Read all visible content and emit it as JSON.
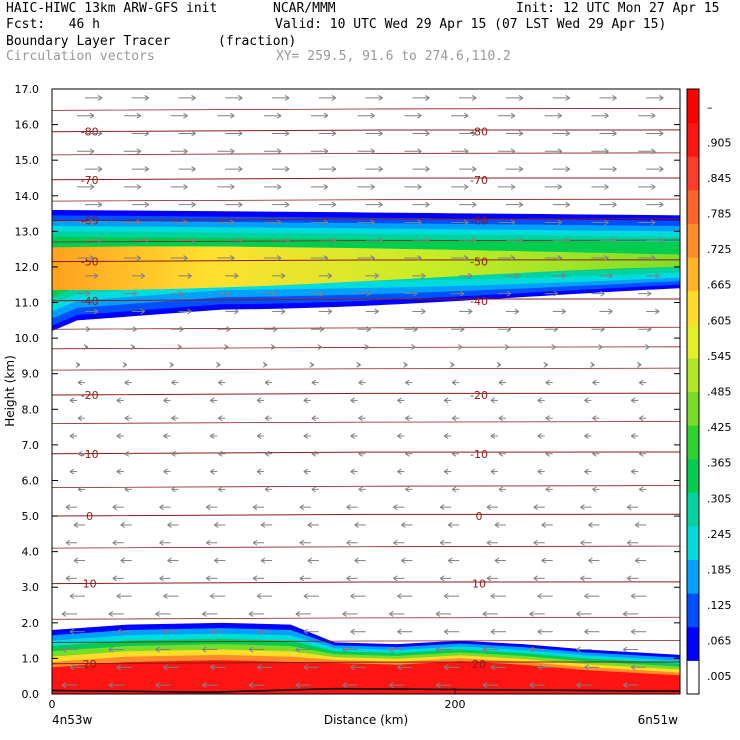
{
  "header": {
    "title": "HAIC-HIWC 13km ARW-GFS init",
    "org": "NCAR/MMM",
    "init": "Init: 12 UTC Mon 27 Apr 15",
    "fcst": "Fcst:   46 h",
    "valid": "Valid: 10 UTC Wed 29 Apr 15 (07 LST Wed 29 Apr 15)",
    "field": "Boundary Layer Tracer",
    "units": "(fraction)",
    "vectors": "Circulation vectors",
    "xy": "XY= 259.5, 91.6 to 274.6,110.2"
  },
  "colors": {
    "tracer_scale": [
      "#ffffff",
      "#0000ff",
      "#0050ff",
      "#00a0ff",
      "#00dcdc",
      "#00d2a0",
      "#00cc50",
      "#30d230",
      "#78dc28",
      "#b4e628",
      "#e6f028",
      "#ffdc28",
      "#ffb428",
      "#ff8c28",
      "#ff6428",
      "#ff3c28",
      "#ff1414",
      "#ff0000"
    ],
    "contour": "#8b1a1a",
    "vector": "#808080"
  },
  "chart_data": {
    "type": "cross-section",
    "xlabel": "Distance (km)",
    "ylabel": "Height (km)",
    "x_ticks": [
      {
        "value": 0,
        "label": "0"
      },
      {
        "value": 200,
        "label": "200"
      }
    ],
    "x_end_labels": [
      "4n53w",
      "6n51w"
    ],
    "ylim": [
      0,
      17
    ],
    "y_ticks": [
      "0.0",
      "1.0",
      "2.0",
      "3.0",
      "4.0",
      "5.0",
      "6.0",
      "7.0",
      "8.0",
      "9.0",
      "10.0",
      "11.0",
      "12.0",
      "13.0",
      "14.0",
      "15.0",
      "16.0",
      "17.0"
    ],
    "colorbar_labels": [
      ".005",
      ".065",
      ".125",
      ".185",
      ".245",
      ".305",
      ".365",
      ".425",
      ".485",
      ".545",
      ".605",
      ".665",
      ".725",
      ".785",
      ".845",
      ".905",
      "–"
    ],
    "temperature_contours": [
      {
        "label": "-80",
        "height": 15.8
      },
      {
        "label": "-70",
        "height": 14.45
      },
      {
        "label": "-60",
        "height": 13.3
      },
      {
        "label": "-50",
        "height": 12.15
      },
      {
        "label": "-40",
        "height": 11.05
      },
      {
        "label": "-20",
        "height": 8.4
      },
      {
        "label": "-10",
        "height": 6.75
      },
      {
        "label": "0",
        "height": 5.0
      },
      {
        "label": "10",
        "height": 3.1
      },
      {
        "label": "20",
        "height": 0.85
      }
    ],
    "tracer_layers": [
      {
        "name": "upper",
        "base_left": 10.2,
        "base_right": 11.4,
        "top": 13.5,
        "peak": 11.8
      },
      {
        "name": "boundary",
        "top_left": 1.8,
        "top_mid": 2.0,
        "top_right": 1.1
      }
    ]
  }
}
